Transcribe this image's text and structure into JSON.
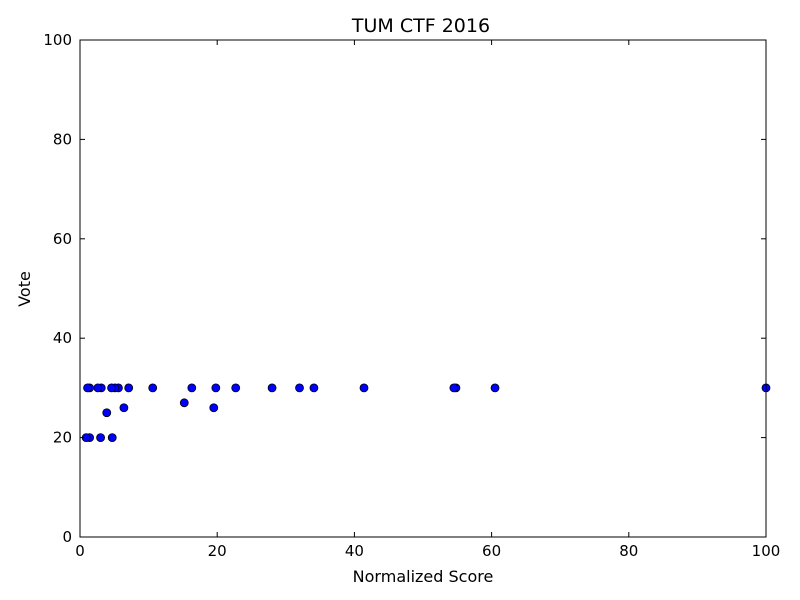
{
  "chart_data": {
    "type": "scatter",
    "title": "TUM CTF 2016",
    "xlabel": "Normalized Score",
    "ylabel": "Vote",
    "xlim": [
      0,
      100
    ],
    "ylim": [
      0,
      100
    ],
    "xticks": [
      0,
      20,
      40,
      60,
      80,
      100
    ],
    "yticks": [
      0,
      20,
      40,
      60,
      80,
      100
    ],
    "grid": false,
    "series": [
      {
        "color": "#0000ff",
        "points": [
          [
            100,
            30
          ],
          [
            60.5,
            30
          ],
          [
            54.8,
            30
          ],
          [
            54.5,
            30
          ],
          [
            41.4,
            30
          ],
          [
            34.1,
            30
          ],
          [
            32.0,
            30
          ],
          [
            28.0,
            30
          ],
          [
            22.7,
            30
          ],
          [
            19.8,
            30
          ],
          [
            16.3,
            30
          ],
          [
            10.6,
            30
          ],
          [
            7.1,
            30
          ],
          [
            5.6,
            30
          ],
          [
            5.1,
            30
          ],
          [
            4.6,
            30
          ],
          [
            3.1,
            30
          ],
          [
            2.6,
            30
          ],
          [
            1.4,
            30
          ],
          [
            1.1,
            30
          ],
          [
            15.2,
            27
          ],
          [
            19.5,
            26
          ],
          [
            6.4,
            26
          ],
          [
            3.9,
            25
          ],
          [
            4.7,
            20
          ],
          [
            3.0,
            20
          ],
          [
            1.4,
            20
          ],
          [
            0.9,
            20
          ]
        ]
      }
    ]
  }
}
